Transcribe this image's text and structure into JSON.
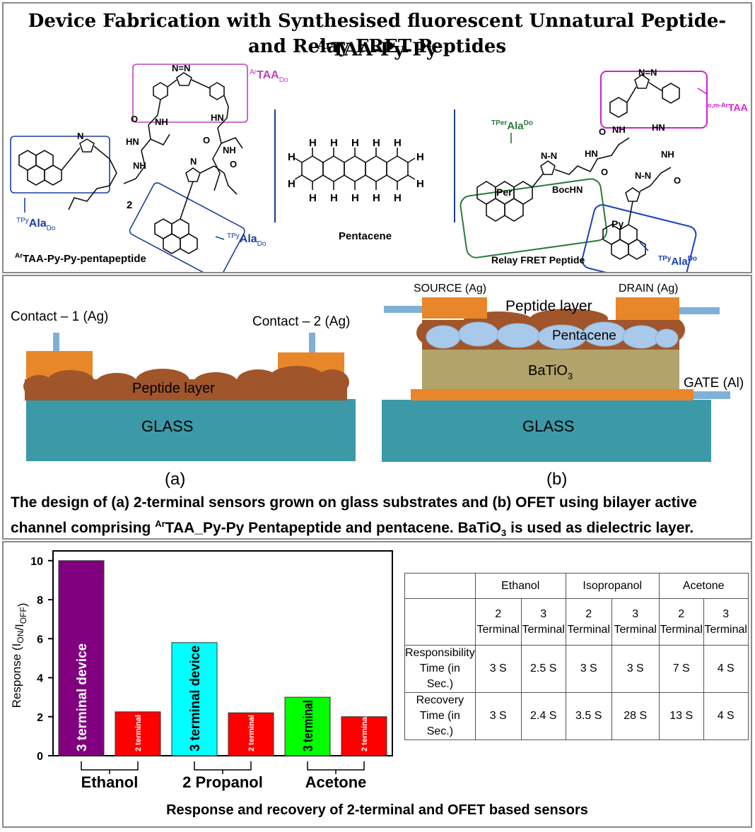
{
  "panel1": {
    "title_line1": "Device Fabrication with Synthesised fluorescent Unnatural Peptide-",
    "title_sup": "Ar",
    "title_line1_end": "TAA-Py-Py",
    "title_line2": "and Relay FRET Peptides",
    "left": {
      "box_label_sup": "Ar",
      "box_label": "TAA",
      "box_label_sub": "Do",
      "tpy_sup": "TPy",
      "tpy_main": "Ala",
      "tpy_sub": "Do",
      "compound_number": "2",
      "name_sup": "Ar",
      "name": "TAA-Py-Py-pentapeptide",
      "atoms": {
        "nh": "NH",
        "hn": "HN",
        "o": "O",
        "n": "N"
      }
    },
    "middle": {
      "label": "Pentacene",
      "h": "H"
    },
    "right": {
      "per_sup": "TPer",
      "per_main": "Ala",
      "per_sup2": "Do",
      "taa_sup": "o,m-Ar",
      "taa_main": "TAA",
      "tpy_sup": "TPy",
      "tpy_main": "Ala",
      "tpy_sup2": "Do",
      "per_ring": "Per",
      "py_ring": "Py",
      "bochn": "BocHN",
      "label": "Relay FRET Peptide"
    }
  },
  "panel2": {
    "a": {
      "contact1": "Contact – 1 (Ag)",
      "contact2": "Contact – 2 (Ag)",
      "layer": "Peptide layer",
      "substrate": "GLASS",
      "tag": "(a)"
    },
    "b": {
      "source": "SOURCE (Ag)",
      "drain": "DRAIN (Ag)",
      "peptide": "Peptide layer",
      "pentacene": "Pentacene",
      "dielectric_main": "BaTiO",
      "dielectric_sub": "3",
      "gate": "GATE (Al)",
      "substrate": "GLASS",
      "tag": "(b)"
    },
    "caption_l1": "The design of (a) 2-terminal sensors grown on glass substrates and (b) OFET using bilayer active",
    "caption_l2a": "channel comprising ",
    "caption_l2sup": "Ar",
    "caption_l2b": "TAA_Py-Py Pentapeptide and pentacene. BaTiO",
    "caption_l2sub": "3",
    "caption_l2c": " is used as dielectric layer."
  },
  "panel3": {
    "chart_data": {
      "type": "bar",
      "ylabel_parts": [
        "Response (I",
        "ON",
        "/I",
        "OFF",
        ")"
      ],
      "ylim": [
        0,
        10.5
      ],
      "yticks": [
        "0",
        "2",
        "4",
        "6",
        "8",
        "10"
      ],
      "groups": [
        {
          "name": "Ethanol",
          "bars": [
            {
              "label": "3 terminal device",
              "value": 10.0,
              "color": "#800080"
            },
            {
              "label": "2 terminal",
              "value": 2.25,
              "color": "#ff0000"
            }
          ]
        },
        {
          "name": "2 Propanol",
          "bars": [
            {
              "label": "3 terminal device",
              "value": 5.8,
              "color": "#00ffff"
            },
            {
              "label": "2 terminal",
              "value": 2.2,
              "color": "#ff0000"
            }
          ]
        },
        {
          "name": "Acetone",
          "bars": [
            {
              "label": "3 terminal",
              "value": 3.0,
              "color": "#00ff00"
            },
            {
              "label": "2 terminal",
              "value": 2.0,
              "color": "#ff0000"
            }
          ]
        }
      ]
    },
    "table": {
      "solvents": [
        "Ethanol",
        "Isopropanol",
        "Acetone"
      ],
      "col_headers": [
        [
          "2",
          "Terminal"
        ],
        [
          "3",
          "Terminal"
        ],
        [
          "2",
          "Terminal"
        ],
        [
          "3",
          "Terminal"
        ],
        [
          "2",
          "Terminal"
        ],
        [
          "3",
          "Terminal"
        ]
      ],
      "rows": [
        {
          "label": [
            "Responsibility",
            "Time (in Sec.)"
          ],
          "values": [
            "3 S",
            "2.5 S",
            "3 S",
            "3 S",
            "7 S",
            "4 S"
          ]
        },
        {
          "label": [
            "Recovery",
            "Time (in Sec.)"
          ],
          "values": [
            "3 S",
            "2.4 S",
            "3.5 S",
            "28 S",
            "13 S",
            "4 S"
          ]
        }
      ]
    },
    "caption": "Response and recovery of 2-terminal and OFET based sensors"
  }
}
